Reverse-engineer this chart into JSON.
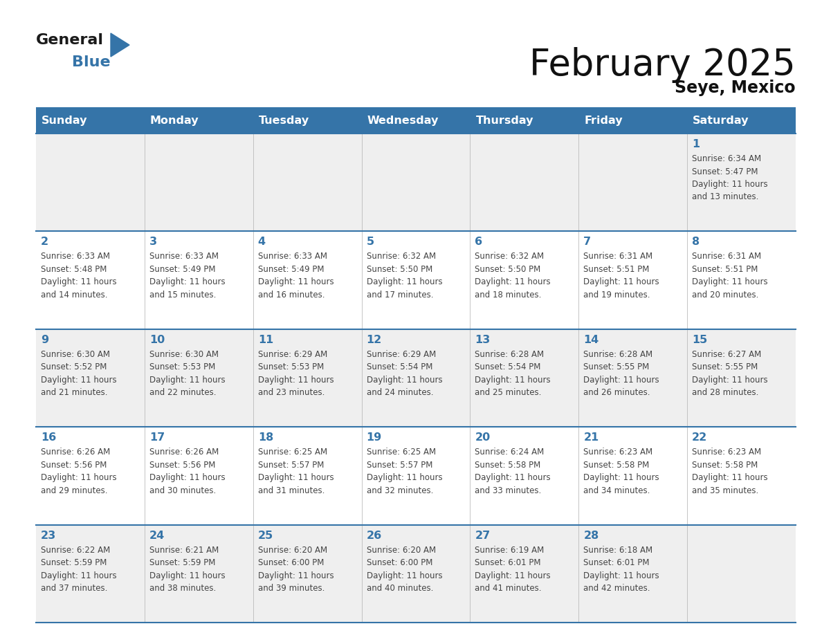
{
  "title": "February 2025",
  "subtitle": "Seye, Mexico",
  "header_color": "#3574a8",
  "header_text_color": "#ffffff",
  "day_names": [
    "Sunday",
    "Monday",
    "Tuesday",
    "Wednesday",
    "Thursday",
    "Friday",
    "Saturday"
  ],
  "background_color": "#ffffff",
  "cell_bg_light": "#efefef",
  "cell_bg_white": "#ffffff",
  "day_number_color": "#3574a8",
  "info_text_color": "#444444",
  "line_color": "#3574a8",
  "logo_black": "#1a1a1a",
  "logo_blue": "#3574a8",
  "weeks": [
    [
      {
        "day": null,
        "sunrise": null,
        "sunset": null,
        "daylight": null
      },
      {
        "day": null,
        "sunrise": null,
        "sunset": null,
        "daylight": null
      },
      {
        "day": null,
        "sunrise": null,
        "sunset": null,
        "daylight": null
      },
      {
        "day": null,
        "sunrise": null,
        "sunset": null,
        "daylight": null
      },
      {
        "day": null,
        "sunrise": null,
        "sunset": null,
        "daylight": null
      },
      {
        "day": null,
        "sunrise": null,
        "sunset": null,
        "daylight": null
      },
      {
        "day": 1,
        "sunrise": "6:34 AM",
        "sunset": "5:47 PM",
        "daylight": "11 hours and 13 minutes."
      }
    ],
    [
      {
        "day": 2,
        "sunrise": "6:33 AM",
        "sunset": "5:48 PM",
        "daylight": "11 hours and 14 minutes."
      },
      {
        "day": 3,
        "sunrise": "6:33 AM",
        "sunset": "5:49 PM",
        "daylight": "11 hours and 15 minutes."
      },
      {
        "day": 4,
        "sunrise": "6:33 AM",
        "sunset": "5:49 PM",
        "daylight": "11 hours and 16 minutes."
      },
      {
        "day": 5,
        "sunrise": "6:32 AM",
        "sunset": "5:50 PM",
        "daylight": "11 hours and 17 minutes."
      },
      {
        "day": 6,
        "sunrise": "6:32 AM",
        "sunset": "5:50 PM",
        "daylight": "11 hours and 18 minutes."
      },
      {
        "day": 7,
        "sunrise": "6:31 AM",
        "sunset": "5:51 PM",
        "daylight": "11 hours and 19 minutes."
      },
      {
        "day": 8,
        "sunrise": "6:31 AM",
        "sunset": "5:51 PM",
        "daylight": "11 hours and 20 minutes."
      }
    ],
    [
      {
        "day": 9,
        "sunrise": "6:30 AM",
        "sunset": "5:52 PM",
        "daylight": "11 hours and 21 minutes."
      },
      {
        "day": 10,
        "sunrise": "6:30 AM",
        "sunset": "5:53 PM",
        "daylight": "11 hours and 22 minutes."
      },
      {
        "day": 11,
        "sunrise": "6:29 AM",
        "sunset": "5:53 PM",
        "daylight": "11 hours and 23 minutes."
      },
      {
        "day": 12,
        "sunrise": "6:29 AM",
        "sunset": "5:54 PM",
        "daylight": "11 hours and 24 minutes."
      },
      {
        "day": 13,
        "sunrise": "6:28 AM",
        "sunset": "5:54 PM",
        "daylight": "11 hours and 25 minutes."
      },
      {
        "day": 14,
        "sunrise": "6:28 AM",
        "sunset": "5:55 PM",
        "daylight": "11 hours and 26 minutes."
      },
      {
        "day": 15,
        "sunrise": "6:27 AM",
        "sunset": "5:55 PM",
        "daylight": "11 hours and 28 minutes."
      }
    ],
    [
      {
        "day": 16,
        "sunrise": "6:26 AM",
        "sunset": "5:56 PM",
        "daylight": "11 hours and 29 minutes."
      },
      {
        "day": 17,
        "sunrise": "6:26 AM",
        "sunset": "5:56 PM",
        "daylight": "11 hours and 30 minutes."
      },
      {
        "day": 18,
        "sunrise": "6:25 AM",
        "sunset": "5:57 PM",
        "daylight": "11 hours and 31 minutes."
      },
      {
        "day": 19,
        "sunrise": "6:25 AM",
        "sunset": "5:57 PM",
        "daylight": "11 hours and 32 minutes."
      },
      {
        "day": 20,
        "sunrise": "6:24 AM",
        "sunset": "5:58 PM",
        "daylight": "11 hours and 33 minutes."
      },
      {
        "day": 21,
        "sunrise": "6:23 AM",
        "sunset": "5:58 PM",
        "daylight": "11 hours and 34 minutes."
      },
      {
        "day": 22,
        "sunrise": "6:23 AM",
        "sunset": "5:58 PM",
        "daylight": "11 hours and 35 minutes."
      }
    ],
    [
      {
        "day": 23,
        "sunrise": "6:22 AM",
        "sunset": "5:59 PM",
        "daylight": "11 hours and 37 minutes."
      },
      {
        "day": 24,
        "sunrise": "6:21 AM",
        "sunset": "5:59 PM",
        "daylight": "11 hours and 38 minutes."
      },
      {
        "day": 25,
        "sunrise": "6:20 AM",
        "sunset": "6:00 PM",
        "daylight": "11 hours and 39 minutes."
      },
      {
        "day": 26,
        "sunrise": "6:20 AM",
        "sunset": "6:00 PM",
        "daylight": "11 hours and 40 minutes."
      },
      {
        "day": 27,
        "sunrise": "6:19 AM",
        "sunset": "6:01 PM",
        "daylight": "11 hours and 41 minutes."
      },
      {
        "day": 28,
        "sunrise": "6:18 AM",
        "sunset": "6:01 PM",
        "daylight": "11 hours and 42 minutes."
      },
      {
        "day": null,
        "sunrise": null,
        "sunset": null,
        "daylight": null
      }
    ]
  ]
}
